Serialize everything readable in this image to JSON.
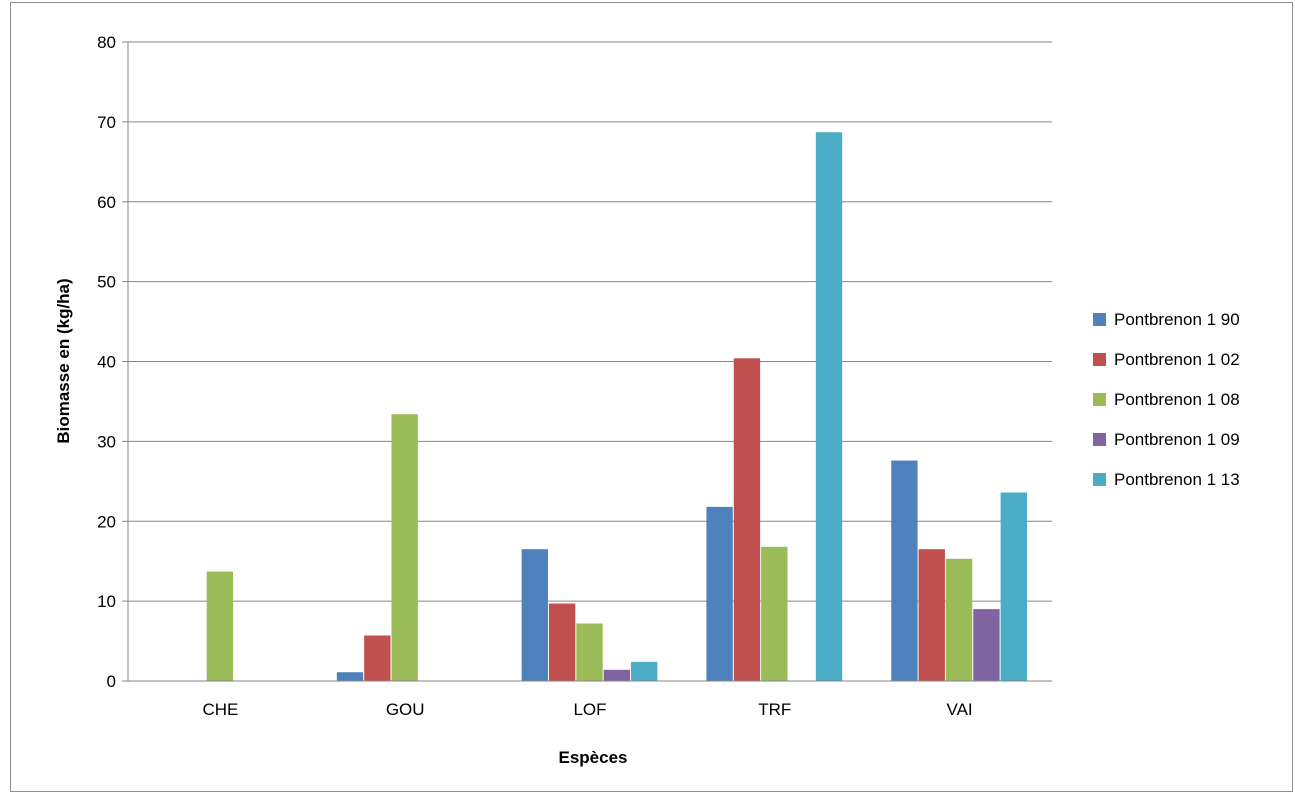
{
  "chart_data": {
    "type": "bar",
    "title": "",
    "xlabel": "Espèces",
    "ylabel": "Biomasse  en (kg/ha)",
    "ylim": [
      0,
      80
    ],
    "yticks": [
      0,
      10,
      20,
      30,
      40,
      50,
      60,
      70,
      80
    ],
    "categories": [
      "CHE",
      "GOU",
      "LOF",
      "TRF",
      "VAI"
    ],
    "grid": "horizontal",
    "legend_position": "right",
    "series": [
      {
        "name": "Pontbrenon 1 90",
        "color": "#4f81bd",
        "values": [
          0,
          1.1,
          16.5,
          21.8,
          27.6
        ]
      },
      {
        "name": "Pontbrenon 1 02",
        "color": "#c0504d",
        "values": [
          0,
          5.7,
          9.7,
          40.4,
          16.5
        ]
      },
      {
        "name": "Pontbrenon 1 08",
        "color": "#9bbb59",
        "values": [
          13.7,
          33.4,
          7.2,
          16.8,
          15.3
        ]
      },
      {
        "name": "Pontbrenon 1 09",
        "color": "#8064a2",
        "values": [
          0,
          0,
          1.4,
          0,
          9.0
        ]
      },
      {
        "name": "Pontbrenon 1 13",
        "color": "#4bacc6",
        "values": [
          0,
          0,
          2.4,
          68.7,
          23.6
        ]
      }
    ]
  }
}
